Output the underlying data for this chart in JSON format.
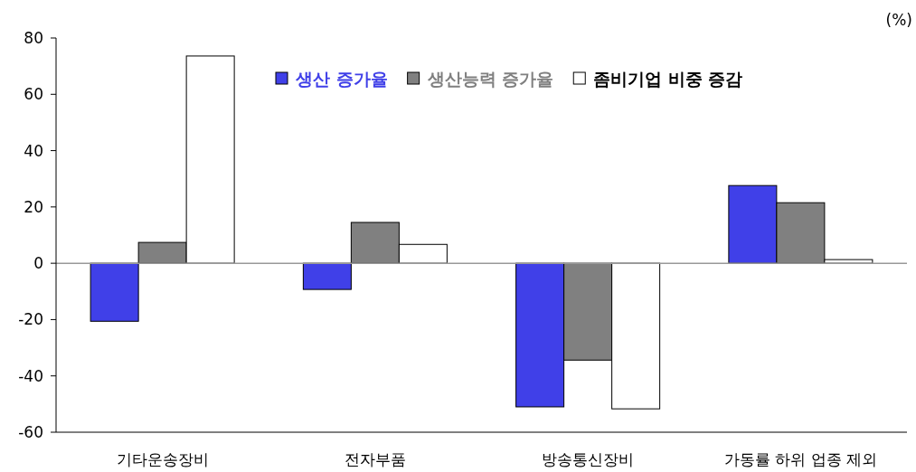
{
  "chart_data": {
    "type": "bar",
    "ylabel": "(%)",
    "categories": [
      "기타운송장비",
      "전자부품",
      "방송통신장비",
      "가동률 하위 업종 제외"
    ],
    "series": [
      {
        "name": "생산 증가율",
        "color": "#4040e8",
        "values": [
          -20.6,
          -9.3,
          -51,
          27.6
        ]
      },
      {
        "name": "생산능력 증가율",
        "color": "#808080",
        "values": [
          7.4,
          14.5,
          -34.4,
          21.5
        ]
      },
      {
        "name": "좀비기업 비중 증감",
        "color": "#ffffff",
        "values": [
          73.6,
          6.7,
          -51.7,
          1.3
        ]
      }
    ],
    "ylim": [
      -60,
      80
    ],
    "yticks": [
      -60,
      -40,
      -20,
      0,
      20,
      40,
      60,
      80
    ],
    "grid": false,
    "ref_lines": [
      {
        "axis": "y",
        "value": 0,
        "color": "#999999"
      }
    ],
    "legend": "top right"
  }
}
